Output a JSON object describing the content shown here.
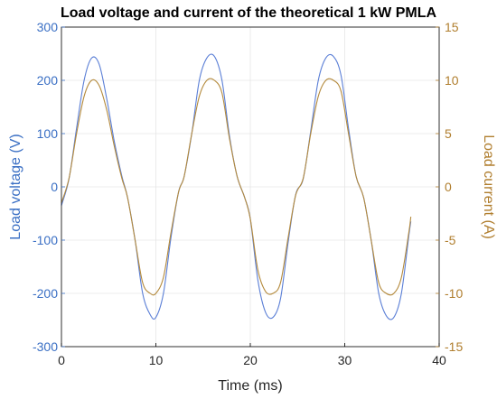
{
  "chart_data": {
    "type": "line",
    "title": "Load voltage and current of the theoretical 1 kW PMLA",
    "xlabel": "Time (ms)",
    "ylabel_left": "Load voltage (V)",
    "ylabel_right": "Load current (A)",
    "xlim": [
      0,
      40
    ],
    "ylim_left": [
      -300,
      300
    ],
    "ylim_right": [
      -15,
      15
    ],
    "xticks": [
      "0",
      "10",
      "20",
      "30",
      "40"
    ],
    "yticks_left": [
      "-300",
      "-200",
      "-100",
      "0",
      "100",
      "200",
      "300"
    ],
    "yticks_right": [
      "-15",
      "-10",
      "-5",
      "0",
      "5",
      "10",
      "15"
    ],
    "grid": true,
    "colors": {
      "voltage": "#5b7fd6",
      "current": "#b48a3c",
      "left_axis": "#3a6fc4",
      "right_axis": "#b07e2e",
      "grid": "#e6e6e6",
      "frame": "#000000"
    },
    "series": [
      {
        "axis": "left",
        "x": [
          0,
          0.8,
          1.6,
          2.4,
          3.2,
          4.0,
          4.8,
          5.6,
          6.4,
          7.0,
          7.8,
          8.6,
          9.4,
          10.0,
          10.8,
          11.6,
          12.4,
          13.0,
          13.8,
          14.6,
          15.4,
          16.2,
          17.0,
          17.8,
          18.6,
          19.4,
          20.0,
          20.8,
          21.6,
          22.4,
          23.2,
          24.0,
          24.8,
          25.6,
          26.4,
          27.2,
          28.0,
          28.8,
          29.6,
          30.4,
          31.2,
          32.0,
          32.8,
          33.6,
          34.4,
          35.2,
          36.0,
          36.8,
          37.0
        ],
        "y": [
          -35,
          15,
          110,
          200,
          242,
          230,
          165,
          85,
          20,
          -20,
          -100,
          -200,
          -240,
          -245,
          -200,
          -95,
          -10,
          20,
          100,
          200,
          242,
          245,
          200,
          95,
          20,
          -20,
          -60,
          -175,
          -235,
          -245,
          -210,
          -105,
          -15,
          15,
          105,
          200,
          242,
          245,
          210,
          110,
          20,
          -20,
          -100,
          -200,
          -242,
          -245,
          -200,
          -90,
          -65
        ]
      },
      {
        "axis": "right",
        "x": [
          0,
          0.8,
          1.6,
          2.4,
          3.2,
          4.0,
          4.8,
          5.6,
          6.4,
          7.0,
          7.8,
          8.6,
          9.4,
          10.0,
          10.8,
          11.6,
          12.4,
          13.0,
          13.8,
          14.6,
          15.4,
          16.2,
          17.0,
          17.8,
          18.6,
          19.4,
          20.0,
          20.8,
          21.6,
          22.4,
          23.2,
          24.0,
          24.8,
          25.6,
          26.4,
          27.2,
          28.0,
          28.8,
          29.6,
          30.4,
          31.2,
          32.0,
          32.8,
          33.6,
          34.4,
          35.2,
          36.0,
          36.8,
          37.0
        ],
        "y": [
          -1.5,
          0.8,
          5.0,
          8.5,
          10.0,
          9.5,
          7.2,
          3.8,
          0.8,
          -1.0,
          -5.0,
          -9.0,
          -10.0,
          -10.0,
          -8.5,
          -4.3,
          -0.5,
          1.0,
          5.0,
          8.5,
          10.0,
          10.0,
          8.8,
          4.5,
          1.0,
          -1.0,
          -3.0,
          -7.8,
          -9.8,
          -10.0,
          -9.0,
          -4.8,
          -0.8,
          0.8,
          5.0,
          8.5,
          10.0,
          10.0,
          9.0,
          5.0,
          1.0,
          -1.0,
          -5.0,
          -9.0,
          -10.0,
          -10.0,
          -8.5,
          -4.2,
          -2.8
        ]
      }
    ]
  }
}
